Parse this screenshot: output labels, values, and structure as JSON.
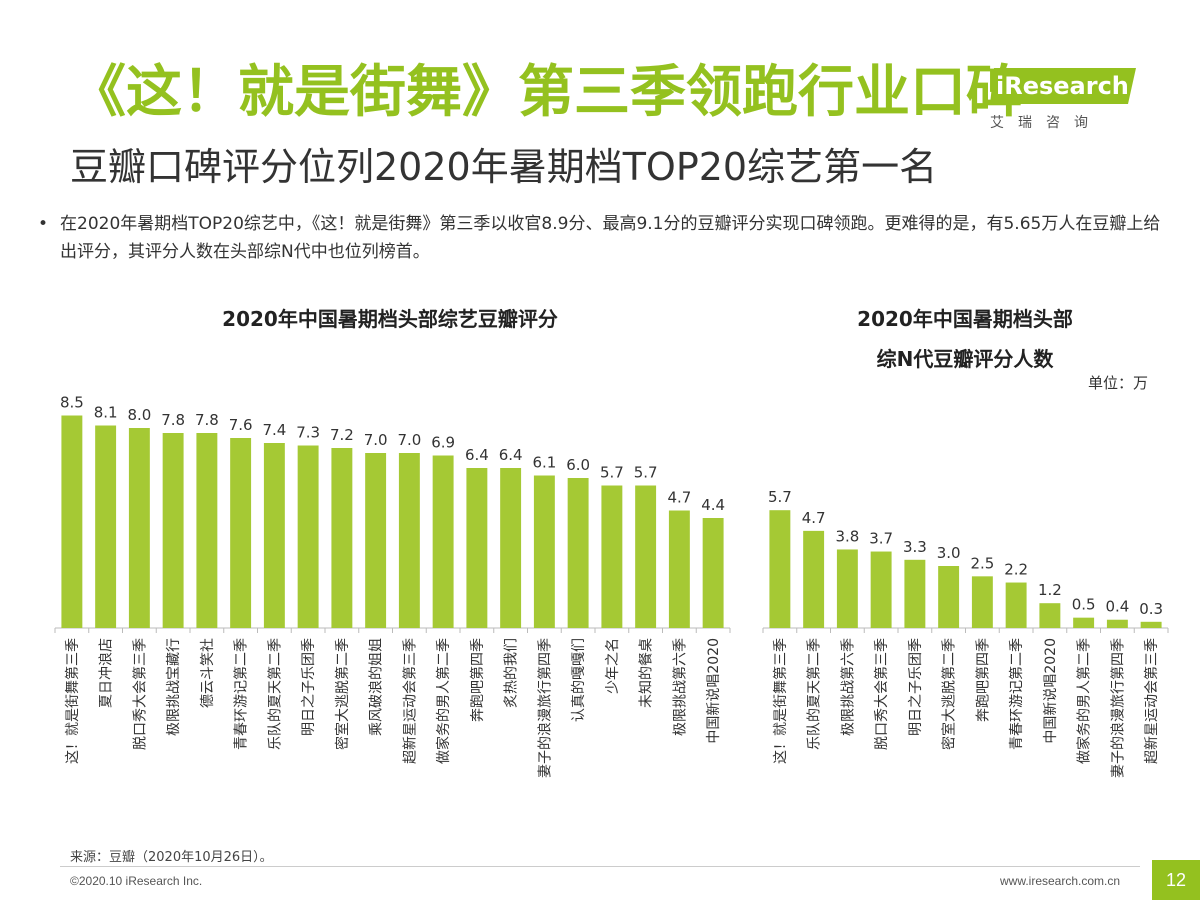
{
  "header": {
    "title": "《这！就是街舞》第三季领跑行业口碑",
    "subtitle": "豆瓣口碑评分位列2020年暑期档TOP20综艺第一名"
  },
  "logo": {
    "text": "iResearch",
    "cn": "艾瑞咨询",
    "color": "#94c11f"
  },
  "bullet": {
    "text": "在2020年暑期档TOP20综艺中，《这！就是街舞》第三季以收官8.9分、最高9.1分的豆瓣评分实现口碑领跑。更难得的是，有5.65万人在豆瓣上给出评分，其评分人数在头部综N代中也位列榜首。"
  },
  "chart_data": [
    {
      "type": "bar",
      "title": "2020年中国暑期档头部综艺豆瓣评分",
      "categories": [
        "这！就是街舞第三季",
        "夏日冲浪店",
        "脱口秀大会第三季",
        "极限挑战宝藏行",
        "德云斗笑社",
        "青春环游记第二季",
        "乐队的夏天第二季",
        "明日之子乐团季",
        "密室大逃脱第二季",
        "乘风破浪的姐姐",
        "超新星运动会第三季",
        "做家务的男人第二季",
        "奔跑吧第四季",
        "炙热的我们",
        "妻子的浪漫旅行第四季",
        "认真的嘎嘎们",
        "少年之名",
        "未知的餐桌",
        "极限挑战第六季",
        "中国新说唱2020"
      ],
      "values": [
        8.5,
        8.1,
        8.0,
        7.8,
        7.8,
        7.6,
        7.4,
        7.3,
        7.2,
        7.0,
        7.0,
        6.9,
        6.4,
        6.4,
        6.1,
        6.0,
        5.7,
        5.7,
        4.7,
        4.4
      ],
      "value_labels": [
        "8.5",
        "8.1",
        "8.0",
        "7.8",
        "7.8",
        "7.6",
        "7.4",
        "7.3",
        "7.2",
        "7.0",
        "7.0",
        "6.9",
        "6.4",
        "6.4",
        "6.1",
        "6.0",
        "5.7",
        "5.7",
        "4.7",
        "4.4"
      ],
      "color": "#a5c934",
      "ylim": [
        0,
        9
      ]
    },
    {
      "type": "bar",
      "title_line1": "2020年中国暑期档头部",
      "title_line2": "综N代豆瓣评分人数",
      "unit": "单位：万",
      "categories": [
        "这！就是街舞第三季",
        "乐队的夏天第二季",
        "极限挑战第六季",
        "脱口秀大会第三季",
        "明日之子乐团季",
        "密室大逃脱第二季",
        "奔跑吧第四季",
        "青春环游记第二季",
        "中国新说唱2020",
        "做家务的男人第二季",
        "妻子的浪漫旅行第四季",
        "超新星运动会第三季"
      ],
      "values": [
        5.7,
        4.7,
        3.8,
        3.7,
        3.3,
        3.0,
        2.5,
        2.2,
        1.2,
        0.5,
        0.4,
        0.3
      ],
      "value_labels": [
        "5.7",
        "4.7",
        "3.8",
        "3.7",
        "3.3",
        "3.0",
        "2.5",
        "2.2",
        "1.2",
        "0.5",
        "0.4",
        "0.3"
      ],
      "color": "#a5c934",
      "ylim": [
        0,
        6
      ]
    }
  ],
  "footer": {
    "source": "来源：豆瓣（2020年10月26日）。",
    "copyright": "©2020.10 iResearch Inc.",
    "website": "www.iresearch.com.cn",
    "page": "12"
  }
}
